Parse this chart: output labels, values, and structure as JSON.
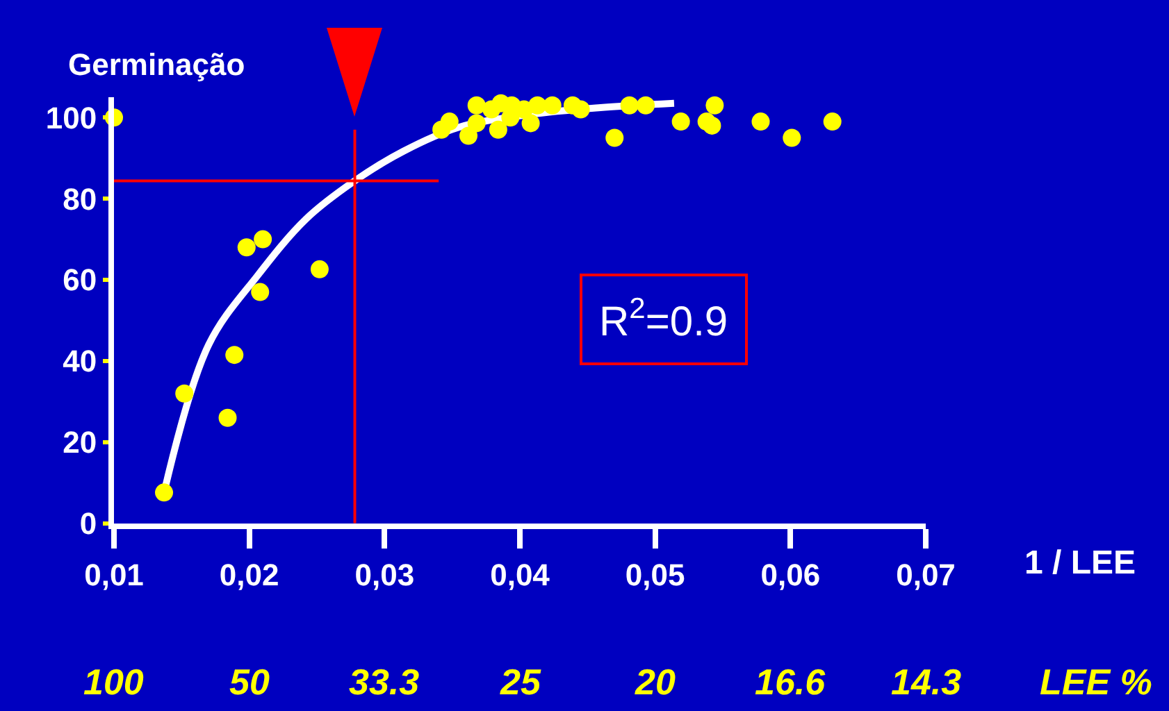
{
  "chart_data": {
    "type": "scatter",
    "ylabel": "Germinação",
    "xlabel": "1 / LEE",
    "annotations": [
      "R$^{2}$=0.9",
      "LEE %",
      "100",
      "50",
      "33.3",
      "25",
      "20",
      "16.6",
      "14.3"
    ],
    "xlim": [
      0.01,
      0.07
    ],
    "ylim": [
      0,
      105
    ],
    "xticks": [
      {
        "value": 0.01,
        "label": "0,01"
      },
      {
        "value": 0.02,
        "label": "0,02"
      },
      {
        "value": 0.03,
        "label": "0,03"
      },
      {
        "value": 0.04,
        "label": "0,04"
      },
      {
        "value": 0.05,
        "label": "0,05"
      },
      {
        "value": 0.06,
        "label": "0,06"
      },
      {
        "value": 0.07,
        "label": "0,07"
      }
    ],
    "yticks": [
      0,
      20,
      40,
      60,
      80,
      100
    ],
    "grid": false,
    "legend": false,
    "marker": "circle",
    "ref_lines": [
      {
        "axis": "x",
        "value": 0.0278,
        "color": "#ff0000"
      },
      {
        "axis": "y",
        "value": 84.4,
        "color": "#ff0000"
      }
    ],
    "series": [
      {
        "color": "#ffff00",
        "x": [
          0.01,
          0.0137,
          0.0152,
          0.0184,
          0.0189,
          0.0198,
          0.021,
          0.0208,
          0.0252,
          0.0342,
          0.0348,
          0.0368,
          0.0362,
          0.0368,
          0.0379,
          0.0384,
          0.0386,
          0.0394,
          0.0403,
          0.0408,
          0.0393,
          0.0413,
          0.0424,
          0.0439,
          0.0445,
          0.047,
          0.0481,
          0.0493,
          0.0519,
          0.0538,
          0.0542,
          0.0544,
          0.0578,
          0.0601,
          0.0631
        ],
        "values": [
          100,
          7.6,
          32,
          26,
          41.5,
          68,
          70,
          57,
          62.6,
          97,
          99,
          103,
          95.5,
          98.6,
          102,
          97,
          103.5,
          103,
          102,
          98.6,
          100,
          103,
          103,
          103,
          102,
          95,
          103,
          103,
          99,
          99,
          98,
          103,
          99,
          95,
          99
        ]
      },
      {
        "type": "line",
        "color": "#ffffff",
        "marker": "none",
        "x": [
          0.0137,
          0.017,
          0.0206,
          0.0242,
          0.0278,
          0.0314,
          0.0355,
          0.0406,
          0.0458,
          0.0514
        ],
        "values": [
          7.6,
          44,
          61,
          75,
          84.4,
          91.7,
          97.6,
          100.7,
          102.4,
          103.5
        ]
      }
    ]
  }
}
